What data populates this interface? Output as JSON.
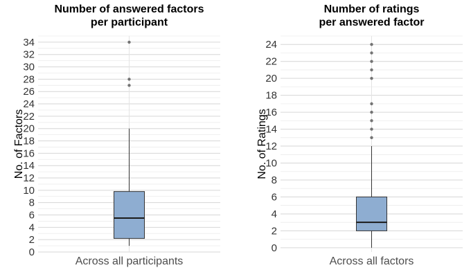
{
  "chart_data": [
    {
      "type": "box",
      "title": [
        "Number of answered factors",
        "per participant"
      ],
      "ylabel": "No. of Factors",
      "categories": [
        "Across all participants"
      ],
      "ylim": [
        0,
        35
      ],
      "yticks": [
        0,
        2,
        4,
        6,
        8,
        10,
        12,
        14,
        16,
        18,
        20,
        22,
        24,
        26,
        28,
        30,
        32,
        34
      ],
      "grid": true,
      "box": {
        "whisker_low": 1,
        "q1": 2.2,
        "median": 5.5,
        "q3": 9.8,
        "whisker_high": 20,
        "outliers": [
          27,
          28,
          34
        ]
      },
      "color": "#8eadd1"
    },
    {
      "type": "box",
      "title": [
        "Number of ratings",
        "per answered factor"
      ],
      "ylabel": "No. of Ratings",
      "categories": [
        "Across all factors"
      ],
      "ylim": [
        -0.5,
        25
      ],
      "yticks": [
        0,
        2,
        4,
        6,
        8,
        10,
        12,
        14,
        16,
        18,
        20,
        22,
        24
      ],
      "grid": true,
      "box": {
        "whisker_low": 0,
        "q1": 2,
        "median": 3,
        "q3": 6,
        "whisker_high": 12,
        "outliers": [
          13,
          14,
          15,
          16,
          17,
          20,
          21,
          22,
          23,
          24
        ]
      },
      "color": "#8eadd1"
    }
  ]
}
